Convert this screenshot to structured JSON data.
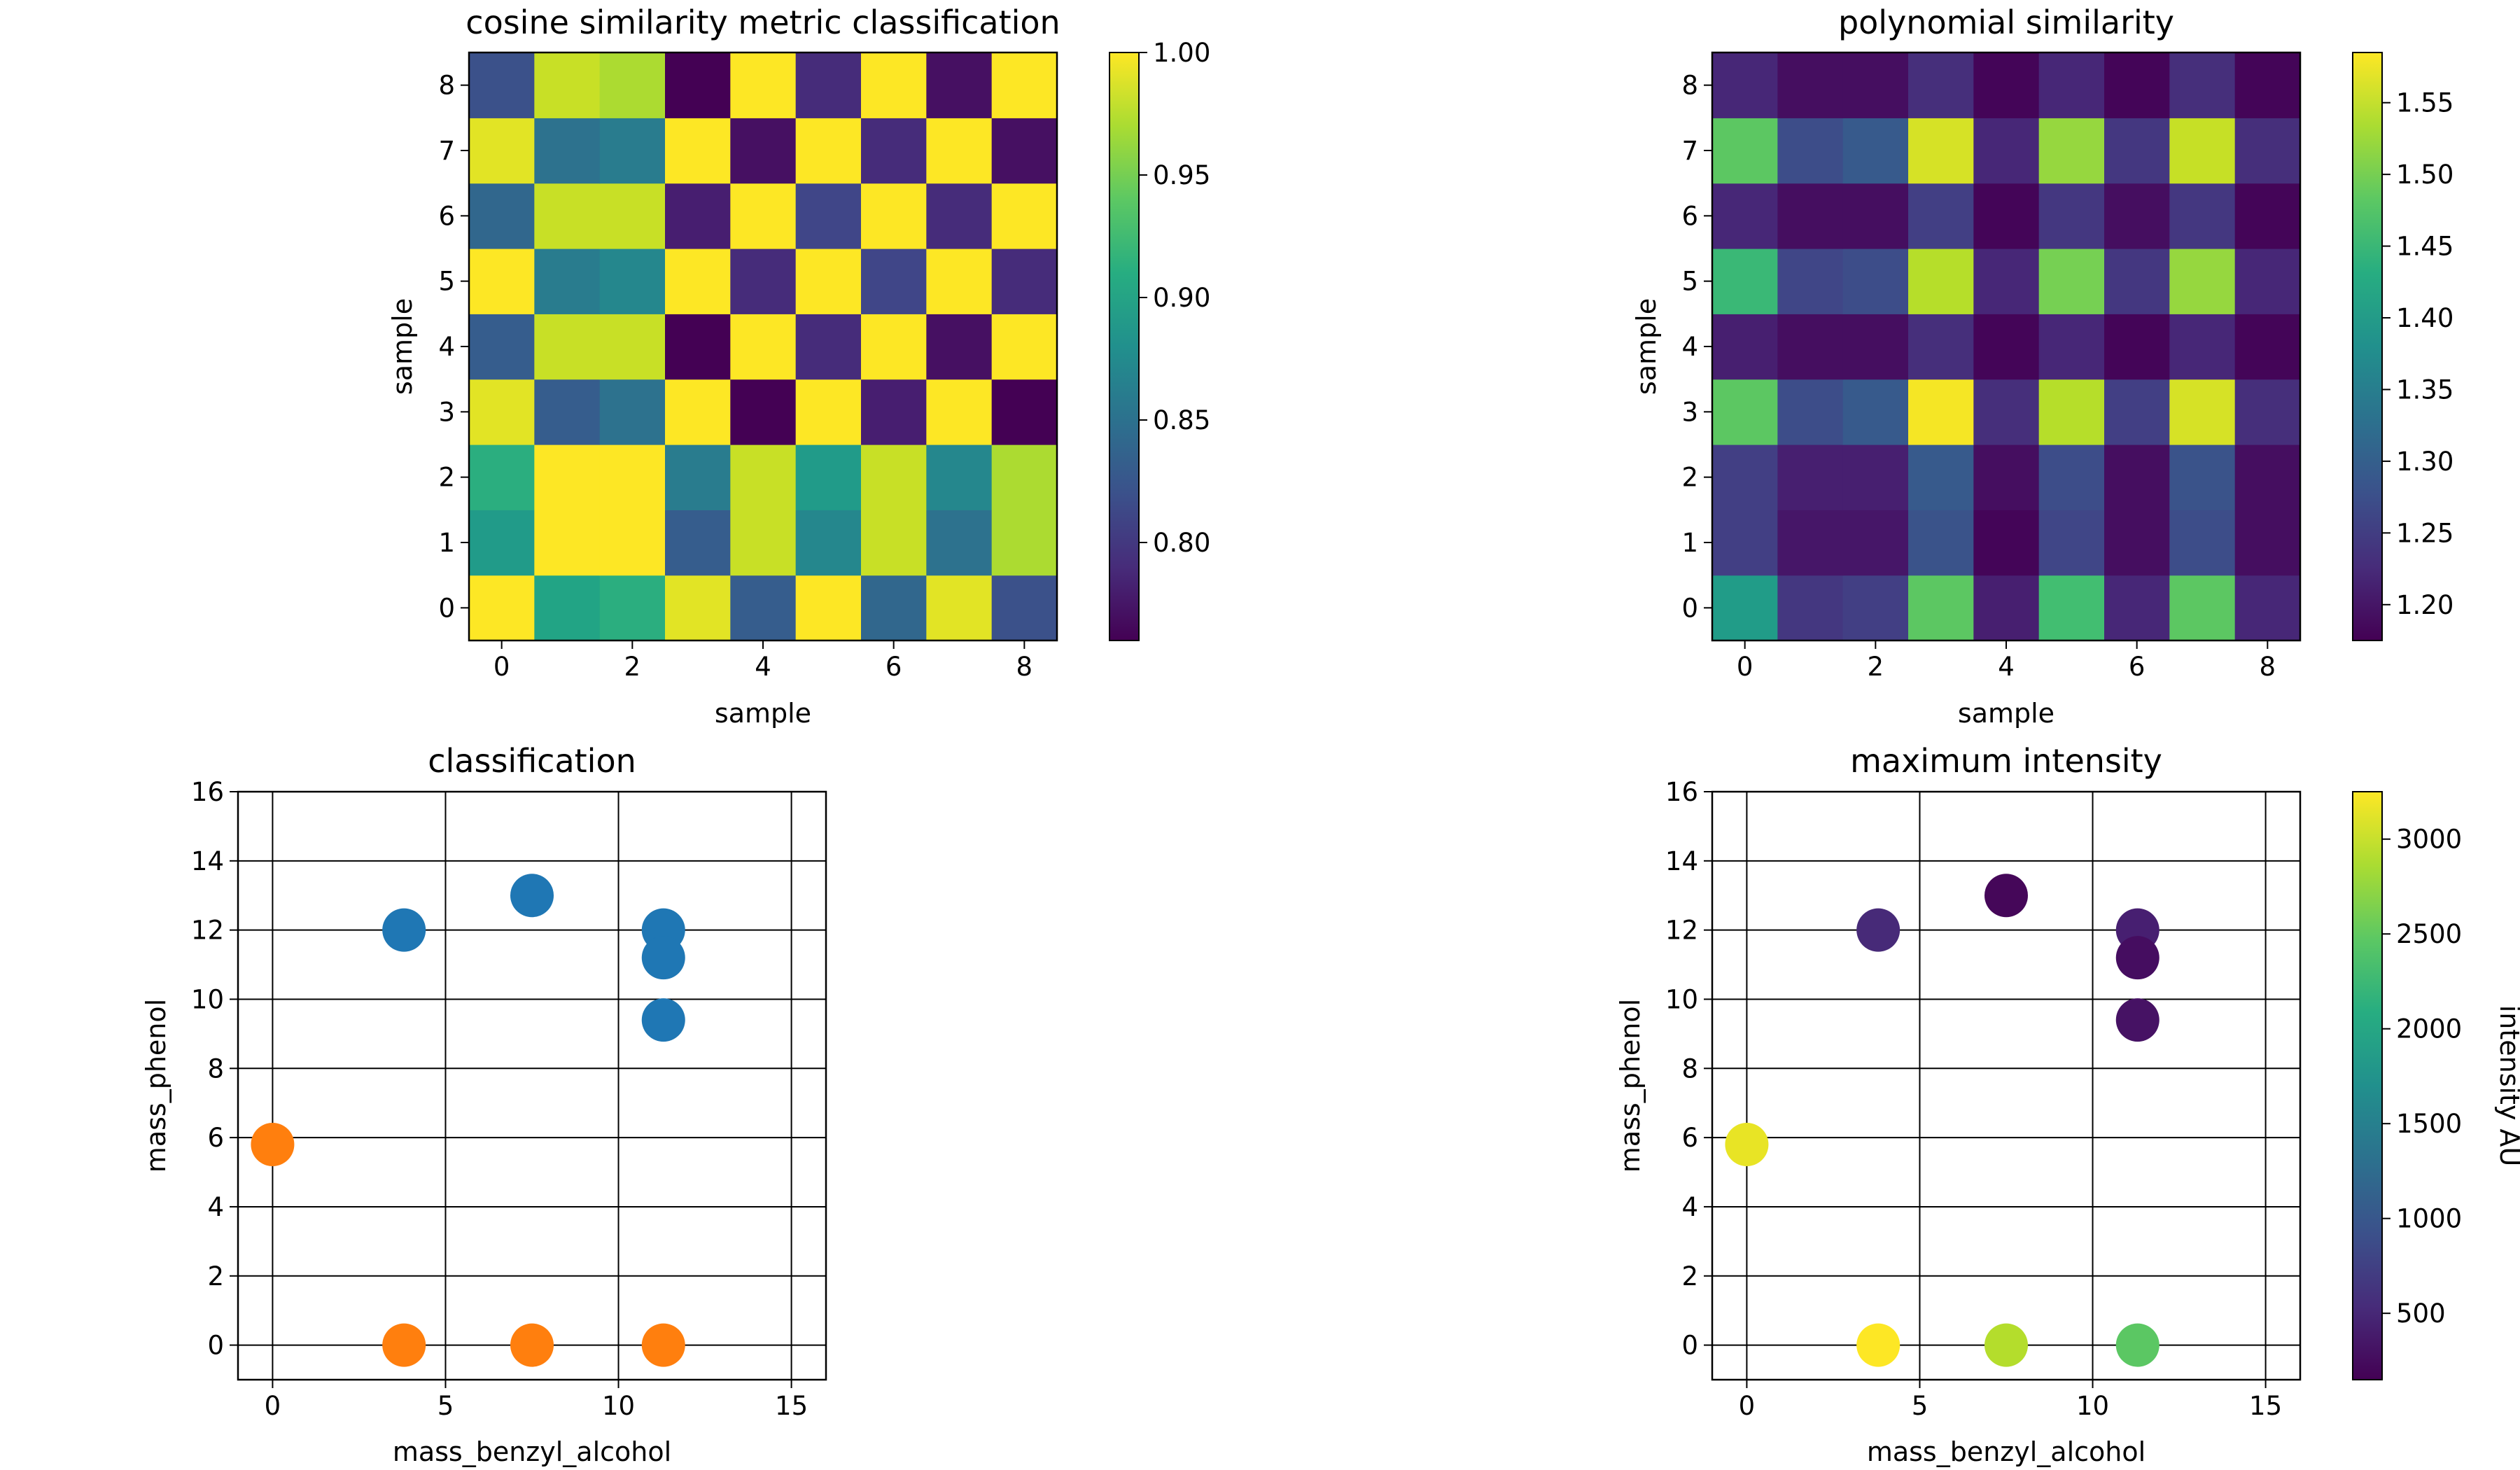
{
  "figure": {
    "panels": [
      {
        "id": "cosine",
        "title": "cosine similarity metric classification",
        "xlabel": "sample",
        "ylabel": "sample"
      },
      {
        "id": "poly",
        "title": "polynomial similarity",
        "xlabel": "sample",
        "ylabel": "sample"
      },
      {
        "id": "class",
        "title": "classification",
        "xlabel": "mass_benzyl_alcohol",
        "ylabel": "mass_phenol"
      },
      {
        "id": "intensity",
        "title": "maximum intensity",
        "xlabel": "mass_benzyl_alcohol",
        "ylabel": "mass_phenol",
        "colorbar_label": "intensity AU"
      }
    ],
    "colors": {
      "cluster_0": "#1f77b4",
      "cluster_1": "#ff7f0e",
      "colormap": "viridis",
      "grid": "#000000"
    }
  },
  "chart_data": [
    {
      "type": "heatmap",
      "title": "cosine similarity metric classification",
      "xlabel": "sample",
      "ylabel": "sample",
      "x_ticks": [
        0,
        2,
        4,
        6,
        8
      ],
      "y_ticks": [
        0,
        1,
        2,
        3,
        4,
        5,
        6,
        7,
        8
      ],
      "colorbar": {
        "min": 0.76,
        "max": 1.0,
        "ticks": [
          "0.80",
          "0.85",
          "0.90",
          "0.95",
          "1.00"
        ],
        "tick_values": [
          0.8,
          0.85,
          0.9,
          0.95,
          1.0
        ]
      },
      "rows_from_bottom": [
        [
          1.0,
          0.9,
          0.91,
          0.99,
          0.83,
          1.0,
          0.84,
          0.99,
          0.82
        ],
        [
          0.89,
          1.0,
          1.0,
          0.83,
          0.98,
          0.87,
          0.98,
          0.85,
          0.97
        ],
        [
          0.91,
          1.0,
          1.0,
          0.86,
          0.98,
          0.89,
          0.98,
          0.87,
          0.97
        ],
        [
          0.99,
          0.83,
          0.85,
          1.0,
          0.76,
          1.0,
          0.78,
          1.0,
          0.76
        ],
        [
          0.83,
          0.98,
          0.98,
          0.76,
          1.0,
          0.79,
          1.0,
          0.77,
          1.0
        ],
        [
          1.0,
          0.86,
          0.87,
          1.0,
          0.79,
          1.0,
          0.81,
          1.0,
          0.79
        ],
        [
          0.84,
          0.98,
          0.98,
          0.78,
          1.0,
          0.81,
          1.0,
          0.79,
          1.0
        ],
        [
          0.99,
          0.85,
          0.86,
          1.0,
          0.77,
          1.0,
          0.79,
          1.0,
          0.77
        ],
        [
          0.82,
          0.98,
          0.97,
          0.76,
          1.0,
          0.79,
          1.0,
          0.77,
          1.0
        ]
      ]
    },
    {
      "type": "heatmap",
      "title": "polynomial similarity",
      "xlabel": "sample",
      "ylabel": "sample",
      "x_ticks": [
        0,
        2,
        4,
        6,
        8
      ],
      "y_ticks": [
        0,
        1,
        2,
        3,
        4,
        5,
        6,
        7,
        8
      ],
      "colorbar": {
        "min": 1.175,
        "max": 1.585,
        "ticks": [
          "1.20",
          "1.25",
          "1.30",
          "1.35",
          "1.40",
          "1.45",
          "1.50",
          "1.55"
        ],
        "tick_values": [
          1.2,
          1.25,
          1.3,
          1.35,
          1.4,
          1.45,
          1.5,
          1.55
        ]
      },
      "rows_from_bottom": [
        [
          1.4,
          1.24,
          1.25,
          1.48,
          1.21,
          1.46,
          1.22,
          1.48,
          1.22
        ],
        [
          1.25,
          1.2,
          1.2,
          1.28,
          1.18,
          1.26,
          1.19,
          1.27,
          1.19
        ],
        [
          1.25,
          1.21,
          1.21,
          1.29,
          1.19,
          1.27,
          1.19,
          1.28,
          1.19
        ],
        [
          1.48,
          1.27,
          1.29,
          1.58,
          1.23,
          1.54,
          1.25,
          1.56,
          1.23
        ],
        [
          1.21,
          1.19,
          1.19,
          1.23,
          1.18,
          1.22,
          1.18,
          1.22,
          1.18
        ],
        [
          1.45,
          1.26,
          1.27,
          1.54,
          1.22,
          1.5,
          1.24,
          1.52,
          1.22
        ],
        [
          1.22,
          1.19,
          1.19,
          1.25,
          1.18,
          1.24,
          1.19,
          1.24,
          1.18
        ],
        [
          1.48,
          1.27,
          1.29,
          1.56,
          1.22,
          1.52,
          1.24,
          1.55,
          1.23
        ],
        [
          1.22,
          1.19,
          1.19,
          1.23,
          1.18,
          1.22,
          1.18,
          1.23,
          1.18
        ]
      ]
    },
    {
      "type": "scatter",
      "title": "classification",
      "xlabel": "mass_benzyl_alcohol",
      "ylabel": "mass_phenol",
      "xlim": [
        -1,
        16
      ],
      "ylim": [
        -1,
        16
      ],
      "x_ticks": [
        0,
        5,
        10,
        15
      ],
      "y_ticks": [
        0,
        2,
        4,
        6,
        8,
        10,
        12,
        14,
        16
      ],
      "grid": true,
      "points": [
        {
          "x": 3.8,
          "y": 12.0,
          "cluster": 0
        },
        {
          "x": 7.5,
          "y": 13.0,
          "cluster": 0
        },
        {
          "x": 11.3,
          "y": 12.0,
          "cluster": 0
        },
        {
          "x": 11.3,
          "y": 11.2,
          "cluster": 0
        },
        {
          "x": 11.3,
          "y": 9.4,
          "cluster": 0
        },
        {
          "x": 0.0,
          "y": 5.8,
          "cluster": 1
        },
        {
          "x": 3.8,
          "y": 0.0,
          "cluster": 1
        },
        {
          "x": 7.5,
          "y": 0.0,
          "cluster": 1
        },
        {
          "x": 11.3,
          "y": 0.0,
          "cluster": 1
        }
      ]
    },
    {
      "type": "scatter",
      "title": "maximum intensity",
      "xlabel": "mass_benzyl_alcohol",
      "ylabel": "mass_phenol",
      "xlim": [
        -1,
        16
      ],
      "ylim": [
        -1,
        16
      ],
      "x_ticks": [
        0,
        5,
        10,
        15
      ],
      "y_ticks": [
        0,
        2,
        4,
        6,
        8,
        10,
        12,
        14,
        16
      ],
      "grid": true,
      "colorbar": {
        "label": "intensity AU",
        "min": 150,
        "max": 3250,
        "ticks": [
          "500",
          "1000",
          "1500",
          "2000",
          "2500",
          "3000"
        ],
        "tick_values": [
          500,
          1000,
          1500,
          2000,
          2500,
          3000
        ]
      },
      "points": [
        {
          "x": 3.8,
          "y": 12.0,
          "intensity": 520
        },
        {
          "x": 7.5,
          "y": 13.0,
          "intensity": 200
        },
        {
          "x": 11.3,
          "y": 12.0,
          "intensity": 420
        },
        {
          "x": 11.3,
          "y": 11.2,
          "intensity": 260
        },
        {
          "x": 11.3,
          "y": 9.4,
          "intensity": 300
        },
        {
          "x": 0.0,
          "y": 5.8,
          "intensity": 3150
        },
        {
          "x": 3.8,
          "y": 0.0,
          "intensity": 3250
        },
        {
          "x": 7.5,
          "y": 0.0,
          "intensity": 2900
        },
        {
          "x": 11.3,
          "y": 0.0,
          "intensity": 2450
        }
      ]
    }
  ]
}
